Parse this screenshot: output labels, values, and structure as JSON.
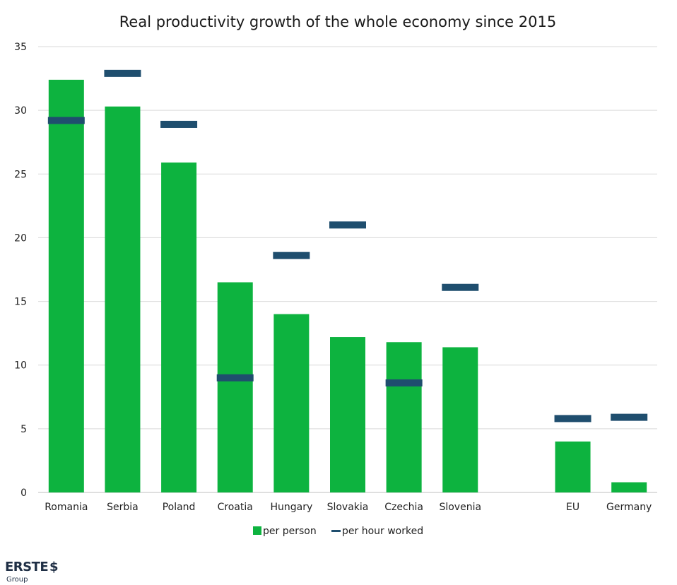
{
  "chart_data": {
    "type": "bar",
    "title": "Real productivity growth of the whole economy since 2015",
    "categories": [
      "Romania",
      "Serbia",
      "Poland",
      "Croatia",
      "Hungary",
      "Slovakia",
      "Czechia",
      "Slovenia",
      "",
      "EU",
      "Germany"
    ],
    "series": [
      {
        "name": "per person",
        "type": "bar",
        "color": "#0db33f",
        "values": [
          32.4,
          30.3,
          25.9,
          16.5,
          14.0,
          12.2,
          11.8,
          11.4,
          null,
          4.0,
          0.8
        ]
      },
      {
        "name": "per hour worked",
        "type": "marker",
        "color": "#1f4e6e",
        "values": [
          29.2,
          32.9,
          28.9,
          9.0,
          18.6,
          21.0,
          8.6,
          16.1,
          null,
          5.8,
          5.9
        ]
      }
    ],
    "ylim": [
      0,
      35
    ],
    "yticks": [
      0,
      5,
      10,
      15,
      20,
      25,
      30,
      35
    ],
    "grid": true,
    "legend_position": "bottom-center"
  },
  "logo": {
    "name": "ERSTE",
    "sub": "Group"
  }
}
